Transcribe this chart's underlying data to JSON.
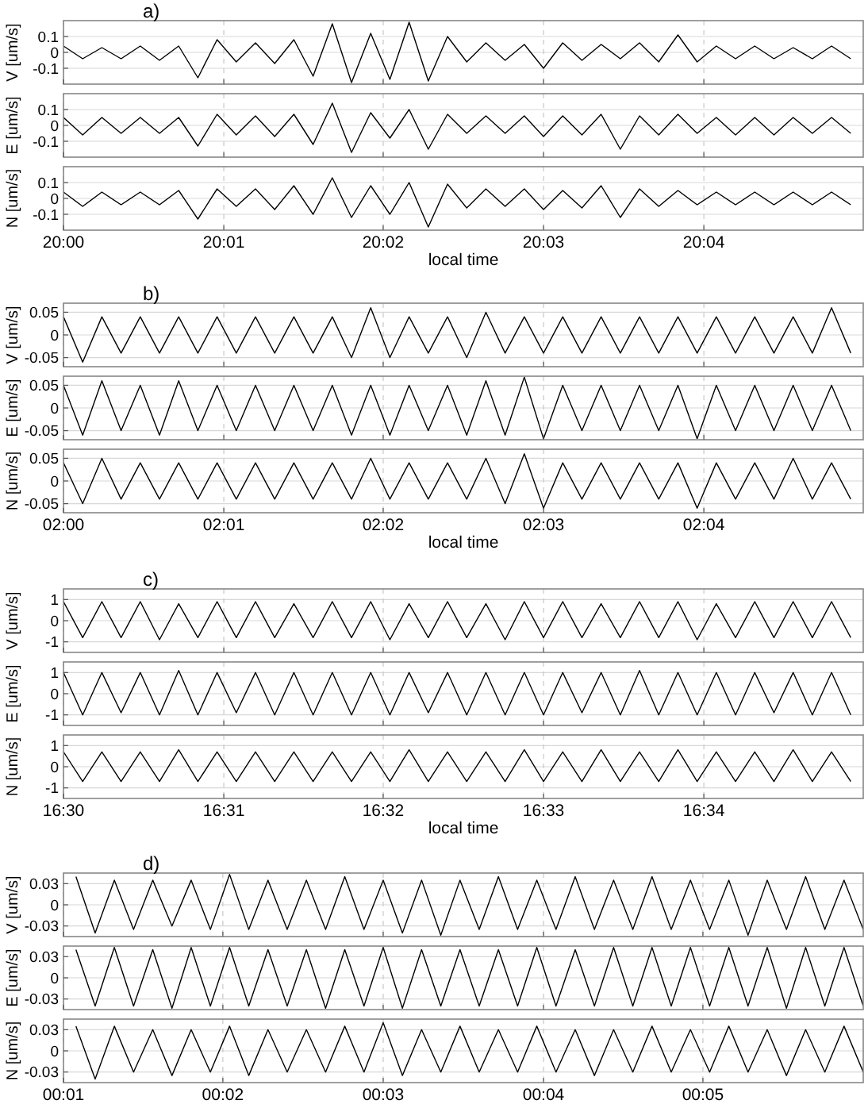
{
  "chart_data": [
    {
      "type": "line",
      "title": "a)",
      "ylabel": "V [um/s]",
      "x": [
        20,
        20.002,
        20.004,
        20.006,
        20.008,
        20.01,
        20.012,
        20.014,
        20.016,
        20.018,
        20.02,
        20.022,
        20.024,
        20.026,
        20.028,
        20.03,
        20.032,
        20.034,
        20.036,
        20.038,
        20.04,
        20.042,
        20.044,
        20.046,
        20.048,
        20.05,
        20.052,
        20.054,
        20.056,
        20.058,
        20.06,
        20.062,
        20.064,
        20.066,
        20.068,
        20.07,
        20.072,
        20.074,
        20.076,
        20.078,
        20.08,
        20.082
      ],
      "xlim": [
        20,
        20.0833
      ],
      "xticks": [
        {
          "value": 20,
          "label": null
        },
        {
          "value": 20.0167,
          "label": null
        },
        {
          "value": 20.0333,
          "label": null
        },
        {
          "value": 20.05,
          "label": null
        },
        {
          "value": 20.0667,
          "label": null
        }
      ],
      "ylim": [
        -0.2,
        0.2
      ],
      "yticks": [
        -0.1,
        0,
        0.1
      ],
      "grid": true,
      "tick_labels": "y",
      "series": [
        {
          "color": "#000000",
          "values": [
            0.04,
            -0.04,
            0.03,
            -0.04,
            0.04,
            -0.05,
            0.04,
            -0.16,
            0.08,
            -0.06,
            0.06,
            -0.07,
            0.08,
            -0.15,
            0.18,
            -0.19,
            0.12,
            -0.17,
            0.19,
            -0.18,
            0.1,
            -0.06,
            0.06,
            -0.05,
            0.05,
            -0.1,
            0.06,
            -0.05,
            0.05,
            -0.04,
            0.06,
            -0.06,
            0.11,
            -0.06,
            0.04,
            -0.04,
            0.04,
            -0.04,
            0.03,
            -0.04,
            0.04,
            -0.04
          ]
        }
      ]
    },
    {
      "type": "line",
      "ylabel": "E [um/s]",
      "x": [
        20,
        20.002,
        20.004,
        20.006,
        20.008,
        20.01,
        20.012,
        20.014,
        20.016,
        20.018,
        20.02,
        20.022,
        20.024,
        20.026,
        20.028,
        20.03,
        20.032,
        20.034,
        20.036,
        20.038,
        20.04,
        20.042,
        20.044,
        20.046,
        20.048,
        20.05,
        20.052,
        20.054,
        20.056,
        20.058,
        20.06,
        20.062,
        20.064,
        20.066,
        20.068,
        20.07,
        20.072,
        20.074,
        20.076,
        20.078,
        20.08,
        20.082
      ],
      "xlim": [
        20,
        20.0833
      ],
      "xticks": [
        {
          "value": 20,
          "label": null
        },
        {
          "value": 20.0167,
          "label": null
        },
        {
          "value": 20.0333,
          "label": null
        },
        {
          "value": 20.05,
          "label": null
        },
        {
          "value": 20.0667,
          "label": null
        }
      ],
      "ylim": [
        -0.2,
        0.2
      ],
      "yticks": [
        -0.1,
        0,
        0.1
      ],
      "grid": true,
      "tick_labels": "y",
      "series": [
        {
          "color": "#000000",
          "values": [
            0.05,
            -0.06,
            0.05,
            -0.05,
            0.05,
            -0.05,
            0.05,
            -0.13,
            0.07,
            -0.06,
            0.06,
            -0.07,
            0.07,
            -0.12,
            0.14,
            -0.17,
            0.08,
            -0.08,
            0.1,
            -0.15,
            0.07,
            -0.05,
            0.06,
            -0.05,
            0.06,
            -0.07,
            0.06,
            -0.06,
            0.07,
            -0.15,
            0.06,
            -0.06,
            0.07,
            -0.05,
            0.05,
            -0.06,
            0.05,
            -0.06,
            0.05,
            -0.05,
            0.05,
            -0.05
          ]
        }
      ]
    },
    {
      "type": "line",
      "ylabel": "N [um/s]",
      "xlabel": "local time",
      "x": [
        20,
        20.002,
        20.004,
        20.006,
        20.008,
        20.01,
        20.012,
        20.014,
        20.016,
        20.018,
        20.02,
        20.022,
        20.024,
        20.026,
        20.028,
        20.03,
        20.032,
        20.034,
        20.036,
        20.038,
        20.04,
        20.042,
        20.044,
        20.046,
        20.048,
        20.05,
        20.052,
        20.054,
        20.056,
        20.058,
        20.06,
        20.062,
        20.064,
        20.066,
        20.068,
        20.07,
        20.072,
        20.074,
        20.076,
        20.078,
        20.08,
        20.082
      ],
      "xlim": [
        20,
        20.0833
      ],
      "xticks": [
        {
          "value": 20,
          "label": "20:00"
        },
        {
          "value": 20.0167,
          "label": "20:01"
        },
        {
          "value": 20.0333,
          "label": "20:02"
        },
        {
          "value": 20.05,
          "label": "20:03"
        },
        {
          "value": 20.0667,
          "label": "20:04"
        }
      ],
      "ylim": [
        -0.2,
        0.2
      ],
      "yticks": [
        -0.1,
        0,
        0.1
      ],
      "grid": true,
      "series": [
        {
          "color": "#000000",
          "values": [
            0.04,
            -0.05,
            0.04,
            -0.04,
            0.04,
            -0.04,
            0.05,
            -0.13,
            0.06,
            -0.05,
            0.06,
            -0.07,
            0.08,
            -0.1,
            0.13,
            -0.12,
            0.08,
            -0.1,
            0.1,
            -0.18,
            0.09,
            -0.06,
            0.06,
            -0.05,
            0.06,
            -0.07,
            0.05,
            -0.06,
            0.08,
            -0.12,
            0.06,
            -0.05,
            0.05,
            -0.04,
            0.04,
            -0.04,
            0.04,
            -0.04,
            0.04,
            -0.04,
            0.04,
            -0.04
          ]
        }
      ]
    },
    {
      "type": "line",
      "title": "b)",
      "ylabel": "V [um/s]",
      "x": [
        2,
        2.002,
        2.004,
        2.006,
        2.008,
        2.01,
        2.012,
        2.014,
        2.016,
        2.018,
        2.02,
        2.022,
        2.024,
        2.026,
        2.028,
        2.03,
        2.032,
        2.034,
        2.036,
        2.038,
        2.04,
        2.042,
        2.044,
        2.046,
        2.048,
        2.05,
        2.052,
        2.054,
        2.056,
        2.058,
        2.06,
        2.062,
        2.064,
        2.066,
        2.068,
        2.07,
        2.072,
        2.074,
        2.076,
        2.078,
        2.08,
        2.082
      ],
      "xlim": [
        2,
        2.0833
      ],
      "xticks": [
        {
          "value": 2,
          "label": null
        },
        {
          "value": 2.0167,
          "label": null
        },
        {
          "value": 2.0333,
          "label": null
        },
        {
          "value": 2.05,
          "label": null
        },
        {
          "value": 2.0667,
          "label": null
        }
      ],
      "ylim": [
        -0.07,
        0.07
      ],
      "yticks": [
        -0.05,
        0,
        0.05
      ],
      "grid": true,
      "tick_labels": "y",
      "series": [
        {
          "color": "#000000",
          "values": [
            0.04,
            -0.06,
            0.04,
            -0.04,
            0.04,
            -0.04,
            0.04,
            -0.04,
            0.04,
            -0.04,
            0.04,
            -0.04,
            0.04,
            -0.04,
            0.04,
            -0.05,
            0.06,
            -0.05,
            0.04,
            -0.04,
            0.04,
            -0.05,
            0.05,
            -0.04,
            0.04,
            -0.04,
            0.04,
            -0.04,
            0.04,
            -0.04,
            0.04,
            -0.04,
            0.04,
            -0.04,
            0.04,
            -0.04,
            0.04,
            -0.04,
            0.04,
            -0.04,
            0.06,
            -0.04
          ]
        }
      ]
    },
    {
      "type": "line",
      "ylabel": "E [um/s]",
      "x": [
        2,
        2.002,
        2.004,
        2.006,
        2.008,
        2.01,
        2.012,
        2.014,
        2.016,
        2.018,
        2.02,
        2.022,
        2.024,
        2.026,
        2.028,
        2.03,
        2.032,
        2.034,
        2.036,
        2.038,
        2.04,
        2.042,
        2.044,
        2.046,
        2.048,
        2.05,
        2.052,
        2.054,
        2.056,
        2.058,
        2.06,
        2.062,
        2.064,
        2.066,
        2.068,
        2.07,
        2.072,
        2.074,
        2.076,
        2.078,
        2.08,
        2.082
      ],
      "xlim": [
        2,
        2.0833
      ],
      "xticks": [
        {
          "value": 2,
          "label": null
        },
        {
          "value": 2.0167,
          "label": null
        },
        {
          "value": 2.0333,
          "label": null
        },
        {
          "value": 2.05,
          "label": null
        },
        {
          "value": 2.0667,
          "label": null
        }
      ],
      "ylim": [
        -0.07,
        0.07
      ],
      "yticks": [
        -0.05,
        0,
        0.05
      ],
      "grid": true,
      "tick_labels": "y",
      "series": [
        {
          "color": "#000000",
          "values": [
            0.05,
            -0.06,
            0.06,
            -0.05,
            0.05,
            -0.06,
            0.06,
            -0.05,
            0.05,
            -0.05,
            0.05,
            -0.05,
            0.05,
            -0.05,
            0.05,
            -0.06,
            0.05,
            -0.06,
            0.05,
            -0.05,
            0.05,
            -0.06,
            0.06,
            -0.06,
            0.068,
            -0.068,
            0.05,
            -0.05,
            0.05,
            -0.05,
            0.05,
            -0.05,
            0.05,
            -0.068,
            0.05,
            -0.05,
            0.05,
            -0.05,
            0.05,
            -0.05,
            0.05,
            -0.05
          ]
        }
      ]
    },
    {
      "type": "line",
      "ylabel": "N [um/s]",
      "xlabel": "local time",
      "x": [
        2,
        2.002,
        2.004,
        2.006,
        2.008,
        2.01,
        2.012,
        2.014,
        2.016,
        2.018,
        2.02,
        2.022,
        2.024,
        2.026,
        2.028,
        2.03,
        2.032,
        2.034,
        2.036,
        2.038,
        2.04,
        2.042,
        2.044,
        2.046,
        2.048,
        2.05,
        2.052,
        2.054,
        2.056,
        2.058,
        2.06,
        2.062,
        2.064,
        2.066,
        2.068,
        2.07,
        2.072,
        2.074,
        2.076,
        2.078,
        2.08,
        2.082
      ],
      "xlim": [
        2,
        2.0833
      ],
      "xticks": [
        {
          "value": 2,
          "label": "02:00"
        },
        {
          "value": 2.0167,
          "label": "02:01"
        },
        {
          "value": 2.0333,
          "label": "02:02"
        },
        {
          "value": 2.05,
          "label": "02:03"
        },
        {
          "value": 2.0667,
          "label": "02:04"
        }
      ],
      "ylim": [
        -0.07,
        0.07
      ],
      "yticks": [
        -0.05,
        0,
        0.05
      ],
      "grid": true,
      "series": [
        {
          "color": "#000000",
          "values": [
            0.04,
            -0.05,
            0.05,
            -0.04,
            0.04,
            -0.04,
            0.04,
            -0.04,
            0.04,
            -0.04,
            0.04,
            -0.04,
            0.04,
            -0.04,
            0.04,
            -0.04,
            0.05,
            -0.04,
            0.04,
            -0.04,
            0.04,
            -0.04,
            0.05,
            -0.05,
            0.06,
            -0.06,
            0.04,
            -0.04,
            0.04,
            -0.04,
            0.04,
            -0.04,
            0.04,
            -0.06,
            0.04,
            -0.04,
            0.04,
            -0.04,
            0.05,
            -0.04,
            0.04,
            -0.04
          ]
        }
      ]
    },
    {
      "type": "line",
      "title": "c)",
      "ylabel": "V [um/s]",
      "x": [
        16.5,
        16.502,
        16.504,
        16.506,
        16.508,
        16.51,
        16.512,
        16.514,
        16.516,
        16.518,
        16.52,
        16.522,
        16.524,
        16.526,
        16.528,
        16.53,
        16.532,
        16.534,
        16.536,
        16.538,
        16.54,
        16.542,
        16.544,
        16.546,
        16.548,
        16.55,
        16.552,
        16.554,
        16.556,
        16.558,
        16.56,
        16.562,
        16.564,
        16.566,
        16.568,
        16.57,
        16.572,
        16.574,
        16.576,
        16.578,
        16.58,
        16.582
      ],
      "xlim": [
        16.5,
        16.5833
      ],
      "xticks": [
        {
          "value": 16.5,
          "label": null
        },
        {
          "value": 16.5167,
          "label": null
        },
        {
          "value": 16.5333,
          "label": null
        },
        {
          "value": 16.55,
          "label": null
        },
        {
          "value": 16.5667,
          "label": null
        }
      ],
      "ylim": [
        -1.5,
        1.5
      ],
      "yticks": [
        -1,
        0,
        1
      ],
      "grid": true,
      "tick_labels": "y",
      "series": [
        {
          "color": "#000000",
          "values": [
            0.9,
            -0.8,
            0.9,
            -0.8,
            0.9,
            -0.9,
            0.8,
            -0.8,
            0.9,
            -0.8,
            0.9,
            -0.8,
            0.8,
            -0.8,
            0.9,
            -0.8,
            0.9,
            -0.9,
            0.8,
            -0.8,
            0.9,
            -0.8,
            0.8,
            -0.9,
            0.9,
            -0.8,
            0.9,
            -0.8,
            0.8,
            -0.8,
            0.9,
            -0.8,
            0.9,
            -0.9,
            0.8,
            -0.8,
            0.9,
            -0.8,
            0.9,
            -0.8,
            0.9,
            -0.8
          ]
        }
      ]
    },
    {
      "type": "line",
      "ylabel": "E [um/s]",
      "x": [
        16.5,
        16.502,
        16.504,
        16.506,
        16.508,
        16.51,
        16.512,
        16.514,
        16.516,
        16.518,
        16.52,
        16.522,
        16.524,
        16.526,
        16.528,
        16.53,
        16.532,
        16.534,
        16.536,
        16.538,
        16.54,
        16.542,
        16.544,
        16.546,
        16.548,
        16.55,
        16.552,
        16.554,
        16.556,
        16.558,
        16.56,
        16.562,
        16.564,
        16.566,
        16.568,
        16.57,
        16.572,
        16.574,
        16.576,
        16.578,
        16.58,
        16.582
      ],
      "xlim": [
        16.5,
        16.5833
      ],
      "xticks": [
        {
          "value": 16.5,
          "label": null
        },
        {
          "value": 16.5167,
          "label": null
        },
        {
          "value": 16.5333,
          "label": null
        },
        {
          "value": 16.55,
          "label": null
        },
        {
          "value": 16.5667,
          "label": null
        }
      ],
      "ylim": [
        -1.5,
        1.5
      ],
      "yticks": [
        -1,
        0,
        1
      ],
      "grid": true,
      "tick_labels": "y",
      "series": [
        {
          "color": "#000000",
          "values": [
            1,
            -1,
            1,
            -0.9,
            1,
            -1,
            1.1,
            -1,
            1,
            -0.9,
            1,
            -1,
            1,
            -1,
            1,
            -1,
            1,
            -1,
            1,
            -0.9,
            1,
            -1,
            1,
            -1,
            1,
            -1,
            1,
            -0.9,
            1,
            -1,
            1.1,
            -1,
            1,
            -1,
            1,
            -1,
            1,
            -0.9,
            1,
            -1,
            1,
            -1
          ]
        }
      ]
    },
    {
      "type": "line",
      "ylabel": "N [um/s]",
      "xlabel": "local time",
      "x": [
        16.5,
        16.502,
        16.504,
        16.506,
        16.508,
        16.51,
        16.512,
        16.514,
        16.516,
        16.518,
        16.52,
        16.522,
        16.524,
        16.526,
        16.528,
        16.53,
        16.532,
        16.534,
        16.536,
        16.538,
        16.54,
        16.542,
        16.544,
        16.546,
        16.548,
        16.55,
        16.552,
        16.554,
        16.556,
        16.558,
        16.56,
        16.562,
        16.564,
        16.566,
        16.568,
        16.57,
        16.572,
        16.574,
        16.576,
        16.578,
        16.58,
        16.582
      ],
      "xlim": [
        16.5,
        16.5833
      ],
      "xticks": [
        {
          "value": 16.5,
          "label": "16:30"
        },
        {
          "value": 16.5167,
          "label": "16:31"
        },
        {
          "value": 16.5333,
          "label": "16:32"
        },
        {
          "value": 16.55,
          "label": "16:33"
        },
        {
          "value": 16.5667,
          "label": "16:34"
        }
      ],
      "ylim": [
        -1.5,
        1.5
      ],
      "yticks": [
        -1,
        0,
        1
      ],
      "grid": true,
      "series": [
        {
          "color": "#000000",
          "values": [
            0.7,
            -0.7,
            0.7,
            -0.7,
            0.7,
            -0.7,
            0.8,
            -0.7,
            0.7,
            -0.7,
            0.7,
            -0.7,
            0.7,
            -0.7,
            0.7,
            -0.7,
            0.7,
            -0.7,
            0.8,
            -0.7,
            0.7,
            -0.7,
            0.7,
            -0.7,
            0.8,
            -0.7,
            0.7,
            -0.7,
            0.8,
            -0.7,
            0.7,
            -0.7,
            0.8,
            -0.7,
            0.7,
            -0.7,
            0.7,
            -0.7,
            0.8,
            -0.7,
            0.7,
            -0.7
          ]
        }
      ]
    },
    {
      "type": "line",
      "title": "d)",
      "ylabel": "V [um/s]",
      "x": [
        0.018,
        0.02,
        0.022,
        0.024,
        0.026,
        0.028,
        0.03,
        0.032,
        0.034,
        0.036,
        0.038,
        0.04,
        0.042,
        0.044,
        0.046,
        0.048,
        0.05,
        0.052,
        0.054,
        0.056,
        0.058,
        0.06,
        0.062,
        0.064,
        0.066,
        0.068,
        0.07,
        0.072,
        0.074,
        0.076,
        0.078,
        0.08,
        0.082,
        0.084,
        0.086,
        0.088,
        0.09,
        0.092,
        0.094,
        0.096,
        0.098,
        0.1
      ],
      "xlim": [
        0.0167,
        0.1
      ],
      "xticks": [
        {
          "value": 0.0167,
          "label": null
        },
        {
          "value": 0.0333,
          "label": null
        },
        {
          "value": 0.05,
          "label": null
        },
        {
          "value": 0.0667,
          "label": null
        },
        {
          "value": 0.0833,
          "label": null
        }
      ],
      "ylim": [
        -0.045,
        0.045
      ],
      "yticks": [
        -0.03,
        0,
        0.03
      ],
      "grid": true,
      "tick_labels": "y",
      "series": [
        {
          "color": "#000000",
          "values": [
            0.04,
            -0.04,
            0.035,
            -0.035,
            0.035,
            -0.03,
            0.035,
            -0.035,
            0.043,
            -0.035,
            0.035,
            -0.035,
            0.035,
            -0.035,
            0.04,
            -0.035,
            0.035,
            -0.04,
            0.035,
            -0.043,
            0.035,
            -0.035,
            0.04,
            -0.035,
            0.035,
            -0.035,
            0.04,
            -0.035,
            0.035,
            -0.035,
            0.04,
            -0.035,
            0.035,
            -0.035,
            0.035,
            -0.043,
            0.035,
            -0.035,
            0.04,
            -0.035,
            0.035,
            -0.035
          ]
        }
      ]
    },
    {
      "type": "line",
      "ylabel": "E [um/s]",
      "x": [
        0.018,
        0.02,
        0.022,
        0.024,
        0.026,
        0.028,
        0.03,
        0.032,
        0.034,
        0.036,
        0.038,
        0.04,
        0.042,
        0.044,
        0.046,
        0.048,
        0.05,
        0.052,
        0.054,
        0.056,
        0.058,
        0.06,
        0.062,
        0.064,
        0.066,
        0.068,
        0.07,
        0.072,
        0.074,
        0.076,
        0.078,
        0.08,
        0.082,
        0.084,
        0.086,
        0.088,
        0.09,
        0.092,
        0.094,
        0.096,
        0.098,
        0.1
      ],
      "xlim": [
        0.0167,
        0.1
      ],
      "xticks": [
        {
          "value": 0.0167,
          "label": null
        },
        {
          "value": 0.0333,
          "label": null
        },
        {
          "value": 0.05,
          "label": null
        },
        {
          "value": 0.0667,
          "label": null
        },
        {
          "value": 0.0833,
          "label": null
        }
      ],
      "ylim": [
        -0.045,
        0.045
      ],
      "yticks": [
        -0.03,
        0,
        0.03
      ],
      "grid": true,
      "tick_labels": "y",
      "series": [
        {
          "color": "#000000",
          "values": [
            0.04,
            -0.04,
            0.043,
            -0.04,
            0.04,
            -0.043,
            0.043,
            -0.04,
            0.043,
            -0.04,
            0.04,
            -0.04,
            0.04,
            -0.043,
            0.04,
            -0.04,
            0.043,
            -0.043,
            0.04,
            -0.04,
            0.04,
            -0.04,
            0.04,
            -0.04,
            0.043,
            -0.04,
            0.04,
            -0.04,
            0.043,
            -0.04,
            0.043,
            -0.04,
            0.043,
            -0.04,
            0.043,
            -0.04,
            0.043,
            -0.043,
            0.043,
            -0.04,
            0.043,
            -0.04
          ]
        }
      ]
    },
    {
      "type": "line",
      "ylabel": "N [um/s]",
      "x": [
        0.018,
        0.02,
        0.022,
        0.024,
        0.026,
        0.028,
        0.03,
        0.032,
        0.034,
        0.036,
        0.038,
        0.04,
        0.042,
        0.044,
        0.046,
        0.048,
        0.05,
        0.052,
        0.054,
        0.056,
        0.058,
        0.06,
        0.062,
        0.064,
        0.066,
        0.068,
        0.07,
        0.072,
        0.074,
        0.076,
        0.078,
        0.08,
        0.082,
        0.084,
        0.086,
        0.088,
        0.09,
        0.092,
        0.094,
        0.096,
        0.098,
        0.1
      ],
      "xlim": [
        0.0167,
        0.1
      ],
      "xticks": [
        {
          "value": 0.0167,
          "label": "00:01"
        },
        {
          "value": 0.0333,
          "label": "00:02"
        },
        {
          "value": 0.05,
          "label": "00:03"
        },
        {
          "value": 0.0667,
          "label": "00:04"
        },
        {
          "value": 0.0833,
          "label": "00:05"
        }
      ],
      "ylim": [
        -0.045,
        0.045
      ],
      "yticks": [
        -0.03,
        0,
        0.03
      ],
      "grid": true,
      "series": [
        {
          "color": "#000000",
          "values": [
            0.035,
            -0.04,
            0.035,
            -0.03,
            0.03,
            -0.035,
            0.03,
            -0.03,
            0.035,
            -0.035,
            0.03,
            -0.03,
            0.03,
            -0.03,
            0.035,
            -0.03,
            0.04,
            -0.035,
            0.03,
            -0.03,
            0.035,
            -0.03,
            0.03,
            -0.03,
            0.035,
            -0.03,
            0.03,
            -0.035,
            0.03,
            -0.03,
            0.035,
            -0.03,
            0.03,
            -0.03,
            0.035,
            -0.03,
            0.03,
            -0.035,
            0.03,
            -0.03,
            0.035,
            -0.03
          ]
        }
      ]
    }
  ]
}
